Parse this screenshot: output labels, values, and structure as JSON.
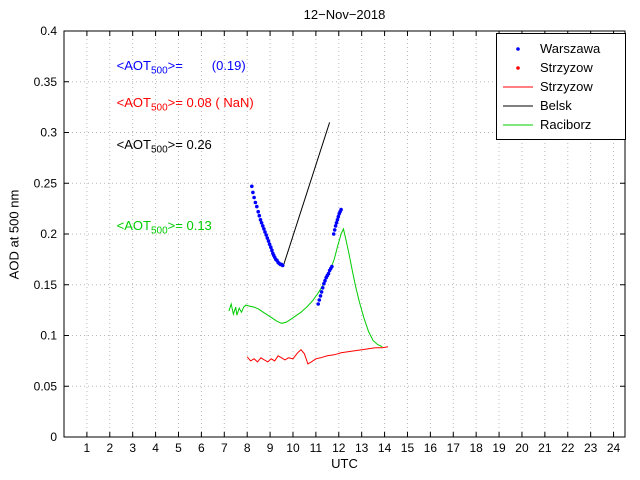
{
  "chart_data": {
    "type": "mixed",
    "title": "12−Nov−2018",
    "xlabel": "UTC",
    "ylabel": "AOD at 500 nm",
    "xlim": [
      0,
      24.5
    ],
    "ylim": [
      0,
      0.4
    ],
    "grid": true,
    "legend_position": "top-right",
    "xticks": [
      1,
      2,
      3,
      4,
      5,
      6,
      7,
      8,
      9,
      10,
      11,
      12,
      13,
      14,
      15,
      16,
      17,
      18,
      19,
      20,
      21,
      22,
      23,
      24
    ],
    "xtick_labels": [
      "1",
      "2",
      "3",
      "4",
      "5",
      "6",
      "7",
      "8",
      "9",
      "10",
      "11",
      "12",
      "13",
      "14",
      "15",
      "16",
      "17",
      "18",
      "19",
      "20",
      "21",
      "22",
      "23",
      "24"
    ],
    "yticks": [
      0,
      0.05,
      0.1,
      0.15,
      0.2,
      0.25,
      0.3,
      0.35,
      0.4
    ],
    "ytick_labels": [
      "0",
      "0.05",
      "0.1",
      "0.15",
      "0.2",
      "0.25",
      "0.3",
      "0.35",
      "0.4"
    ],
    "colors": {
      "axis": "#000000",
      "grid": "#b8b8b8",
      "warszawa": "#0000ff",
      "strzyzow": "#ff0000",
      "belsk": "#000000",
      "raciborz": "#00cc00"
    },
    "series": [
      {
        "name": "Warszawa",
        "type": "scatter",
        "color": "#0000ff",
        "points": [
          [
            8.2,
            0.247
          ],
          [
            8.25,
            0.241
          ],
          [
            8.3,
            0.236
          ],
          [
            8.36,
            0.231
          ],
          [
            8.42,
            0.227
          ],
          [
            8.48,
            0.222
          ],
          [
            8.53,
            0.218
          ],
          [
            8.58,
            0.214
          ],
          [
            8.63,
            0.211
          ],
          [
            8.68,
            0.208
          ],
          [
            8.73,
            0.205
          ],
          [
            8.78,
            0.202
          ],
          [
            8.83,
            0.199
          ],
          [
            8.88,
            0.196
          ],
          [
            8.93,
            0.193
          ],
          [
            8.98,
            0.19
          ],
          [
            9.03,
            0.187
          ],
          [
            9.08,
            0.184
          ],
          [
            9.12,
            0.181
          ],
          [
            9.16,
            0.179
          ],
          [
            9.2,
            0.177
          ],
          [
            9.25,
            0.175
          ],
          [
            9.3,
            0.174
          ],
          [
            9.35,
            0.172
          ],
          [
            9.4,
            0.171
          ],
          [
            9.45,
            0.17
          ],
          [
            9.5,
            0.17
          ],
          [
            9.55,
            0.169
          ],
          [
            11.1,
            0.131
          ],
          [
            11.15,
            0.135
          ],
          [
            11.2,
            0.139
          ],
          [
            11.25,
            0.143
          ],
          [
            11.3,
            0.147
          ],
          [
            11.35,
            0.151
          ],
          [
            11.4,
            0.154
          ],
          [
            11.45,
            0.157
          ],
          [
            11.5,
            0.159
          ],
          [
            11.55,
            0.161
          ],
          [
            11.6,
            0.164
          ],
          [
            11.65,
            0.166
          ],
          [
            11.7,
            0.168
          ],
          [
            11.78,
            0.2
          ],
          [
            11.82,
            0.204
          ],
          [
            11.86,
            0.208
          ],
          [
            11.9,
            0.211
          ],
          [
            11.94,
            0.214
          ],
          [
            11.98,
            0.217
          ],
          [
            12.02,
            0.22
          ],
          [
            12.06,
            0.222
          ],
          [
            12.1,
            0.224
          ]
        ]
      },
      {
        "name": "Strzyzow",
        "type": "scatter",
        "color": "#ff0000",
        "points": []
      },
      {
        "name": "Strzyzow",
        "type": "line",
        "color": "#ff0000",
        "points": [
          [
            8.0,
            0.079
          ],
          [
            8.15,
            0.075
          ],
          [
            8.3,
            0.077
          ],
          [
            8.45,
            0.074
          ],
          [
            8.6,
            0.078
          ],
          [
            8.75,
            0.076
          ],
          [
            8.9,
            0.074
          ],
          [
            9.05,
            0.077
          ],
          [
            9.2,
            0.075
          ],
          [
            9.35,
            0.08
          ],
          [
            9.5,
            0.078
          ],
          [
            9.65,
            0.076
          ],
          [
            9.8,
            0.078
          ],
          [
            10.0,
            0.077
          ],
          [
            10.2,
            0.083
          ],
          [
            10.35,
            0.086
          ],
          [
            10.5,
            0.082
          ],
          [
            10.65,
            0.072
          ],
          [
            10.8,
            0.074
          ],
          [
            11.0,
            0.077
          ],
          [
            11.2,
            0.078
          ],
          [
            11.5,
            0.08
          ],
          [
            11.8,
            0.081
          ],
          [
            12.1,
            0.083
          ],
          [
            12.4,
            0.084
          ],
          [
            12.7,
            0.085
          ],
          [
            13.0,
            0.086
          ],
          [
            13.3,
            0.087
          ],
          [
            13.6,
            0.088
          ],
          [
            13.9,
            0.088
          ],
          [
            14.15,
            0.089
          ]
        ]
      },
      {
        "name": "Belsk",
        "type": "line",
        "color": "#000000",
        "points": [
          [
            9.6,
            0.17
          ],
          [
            11.6,
            0.31
          ]
        ]
      },
      {
        "name": "Raciborz",
        "type": "line",
        "color": "#00cc00",
        "points": [
          [
            7.2,
            0.124
          ],
          [
            7.3,
            0.131
          ],
          [
            7.4,
            0.121
          ],
          [
            7.5,
            0.128
          ],
          [
            7.55,
            0.12
          ],
          [
            7.65,
            0.127
          ],
          [
            7.75,
            0.123
          ],
          [
            7.85,
            0.128
          ],
          [
            7.95,
            0.13
          ],
          [
            8.1,
            0.129
          ],
          [
            8.3,
            0.128
          ],
          [
            8.5,
            0.126
          ],
          [
            8.7,
            0.123
          ],
          [
            8.9,
            0.12
          ],
          [
            9.1,
            0.117
          ],
          [
            9.3,
            0.114
          ],
          [
            9.5,
            0.112
          ],
          [
            9.7,
            0.113
          ],
          [
            9.9,
            0.116
          ],
          [
            10.1,
            0.119
          ],
          [
            10.35,
            0.123
          ],
          [
            10.6,
            0.128
          ],
          [
            10.85,
            0.134
          ],
          [
            11.1,
            0.142
          ],
          [
            11.35,
            0.151
          ],
          [
            11.6,
            0.163
          ],
          [
            11.8,
            0.175
          ],
          [
            11.95,
            0.188
          ],
          [
            12.1,
            0.2
          ],
          [
            12.2,
            0.205
          ],
          [
            12.3,
            0.196
          ],
          [
            12.45,
            0.18
          ],
          [
            12.6,
            0.163
          ],
          [
            12.75,
            0.147
          ],
          [
            12.9,
            0.133
          ],
          [
            13.1,
            0.117
          ],
          [
            13.3,
            0.104
          ],
          [
            13.5,
            0.095
          ],
          [
            13.7,
            0.091
          ],
          [
            13.9,
            0.089
          ]
        ]
      }
    ],
    "annotations": [
      {
        "pre": "<AOT",
        "sub": "500",
        "post": ">=",
        "value": "        (0.19)",
        "color": "#0000ff",
        "x": 2.3,
        "y": 0.365
      },
      {
        "pre": "<AOT",
        "sub": "500",
        "post": ">=",
        "value": " 0.08 ( NaN)",
        "color": "#ff0000",
        "x": 2.3,
        "y": 0.328
      },
      {
        "pre": "<AOT",
        "sub": "500",
        "post": ">=",
        "value": " 0.26",
        "color": "#000000",
        "x": 2.3,
        "y": 0.287
      },
      {
        "pre": "<AOT",
        "sub": "500",
        "post": ">=",
        "value": " 0.13",
        "color": "#00cc00",
        "x": 2.3,
        "y": 0.207
      }
    ]
  }
}
